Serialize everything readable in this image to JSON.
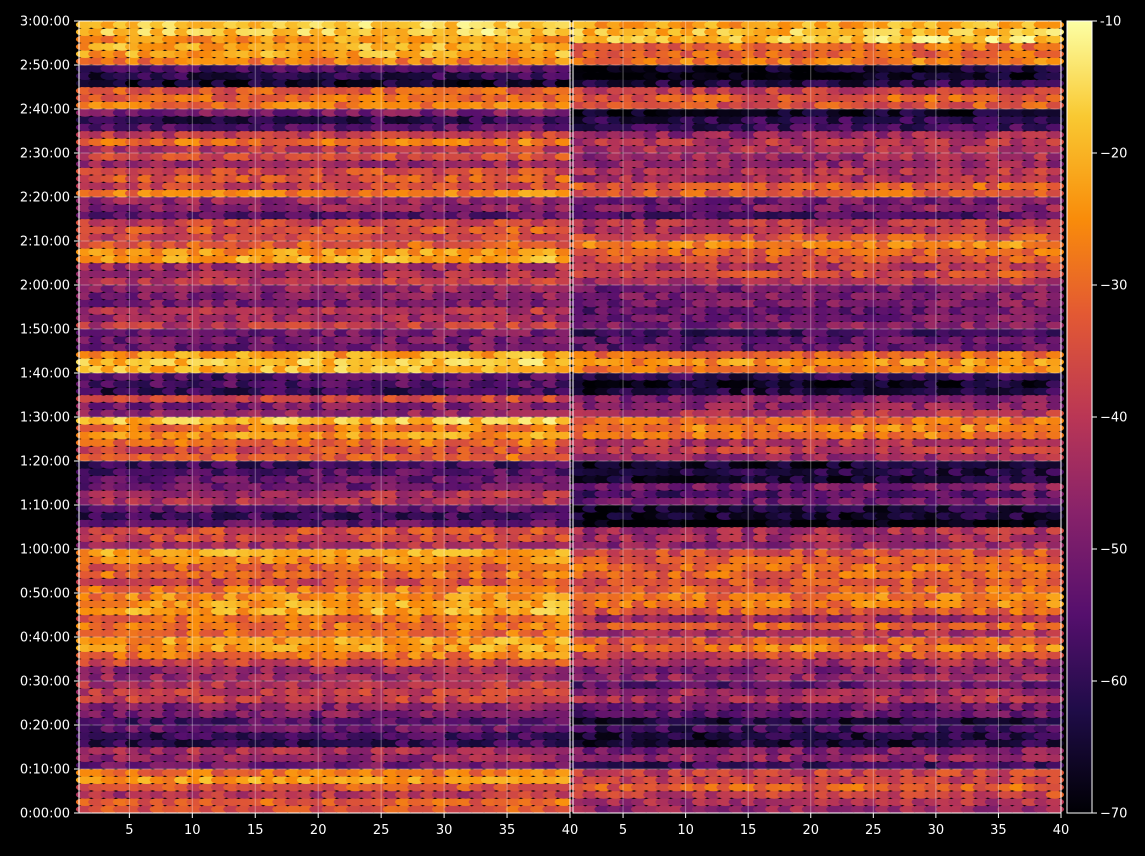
{
  "chart_data": {
    "type": "heatmap",
    "colormap": "inferno",
    "background_color": "#000000",
    "grid": true,
    "colorbar": {
      "placement": "right",
      "range": [
        -70,
        -10
      ],
      "ticks": [
        "-10",
        "−20",
        "−30",
        "−40",
        "−50",
        "−60",
        "−70"
      ],
      "tick_values": [
        -10,
        -20,
        -30,
        -40,
        -50,
        -60,
        -70
      ]
    },
    "y_axis": {
      "range_seconds": [
        0,
        10800
      ],
      "ticks": [
        "0:00:00",
        "0:10:00",
        "0:20:00",
        "0:30:00",
        "0:40:00",
        "0:50:00",
        "1:00:00",
        "1:10:00",
        "1:20:00",
        "1:30:00",
        "1:40:00",
        "1:50:00",
        "2:00:00",
        "2:10:00",
        "2:20:00",
        "2:30:00",
        "2:40:00",
        "2:50:00",
        "3:00:00"
      ]
    },
    "panels": [
      {
        "xlim": [
          1,
          40
        ],
        "xticks": [
          "5",
          "10",
          "15",
          "20",
          "25",
          "30",
          "35",
          "40"
        ]
      },
      {
        "xlim": [
          1,
          40
        ],
        "xticks": [
          "5",
          "10",
          "15",
          "20",
          "25",
          "30",
          "35",
          "40"
        ]
      }
    ],
    "rows": [
      {
        "t": "0:00:00",
        "level": -38
      },
      {
        "t": "0:05:00",
        "level": -28
      },
      {
        "t": "0:10:00",
        "level": -48
      },
      {
        "t": "0:15:00",
        "level": -58
      },
      {
        "t": "0:20:00",
        "level": -55
      },
      {
        "t": "0:25:00",
        "level": -45
      },
      {
        "t": "0:30:00",
        "level": -40
      },
      {
        "t": "0:35:00",
        "level": -26
      },
      {
        "t": "0:40:00",
        "level": -34
      },
      {
        "t": "0:45:00",
        "level": -24
      },
      {
        "t": "0:50:00",
        "level": -33
      },
      {
        "t": "0:55:00",
        "level": -27
      },
      {
        "t": "1:00:00",
        "level": -42
      },
      {
        "t": "1:05:00",
        "level": -62
      },
      {
        "t": "1:10:00",
        "level": -46
      },
      {
        "t": "1:15:00",
        "level": -55
      },
      {
        "t": "1:20:00",
        "level": -38
      },
      {
        "t": "1:25:00",
        "level": -25
      },
      {
        "t": "1:30:00",
        "level": -44
      },
      {
        "t": "1:35:00",
        "level": -56
      },
      {
        "t": "1:40:00",
        "level": -22
      },
      {
        "t": "1:45:00",
        "level": -48
      },
      {
        "t": "1:50:00",
        "level": -42
      },
      {
        "t": "1:55:00",
        "level": -50
      },
      {
        "t": "2:00:00",
        "level": -38
      },
      {
        "t": "2:05:00",
        "level": -30
      },
      {
        "t": "2:10:00",
        "level": -36
      },
      {
        "t": "2:15:00",
        "level": -50
      },
      {
        "t": "2:20:00",
        "level": -34
      },
      {
        "t": "2:25:00",
        "level": -44
      },
      {
        "t": "2:30:00",
        "level": -35
      },
      {
        "t": "2:35:00",
        "level": -58
      },
      {
        "t": "2:40:00",
        "level": -28
      },
      {
        "t": "2:45:00",
        "level": -60
      },
      {
        "t": "2:50:00",
        "level": -24
      },
      {
        "t": "2:55:00",
        "level": -18
      }
    ]
  }
}
